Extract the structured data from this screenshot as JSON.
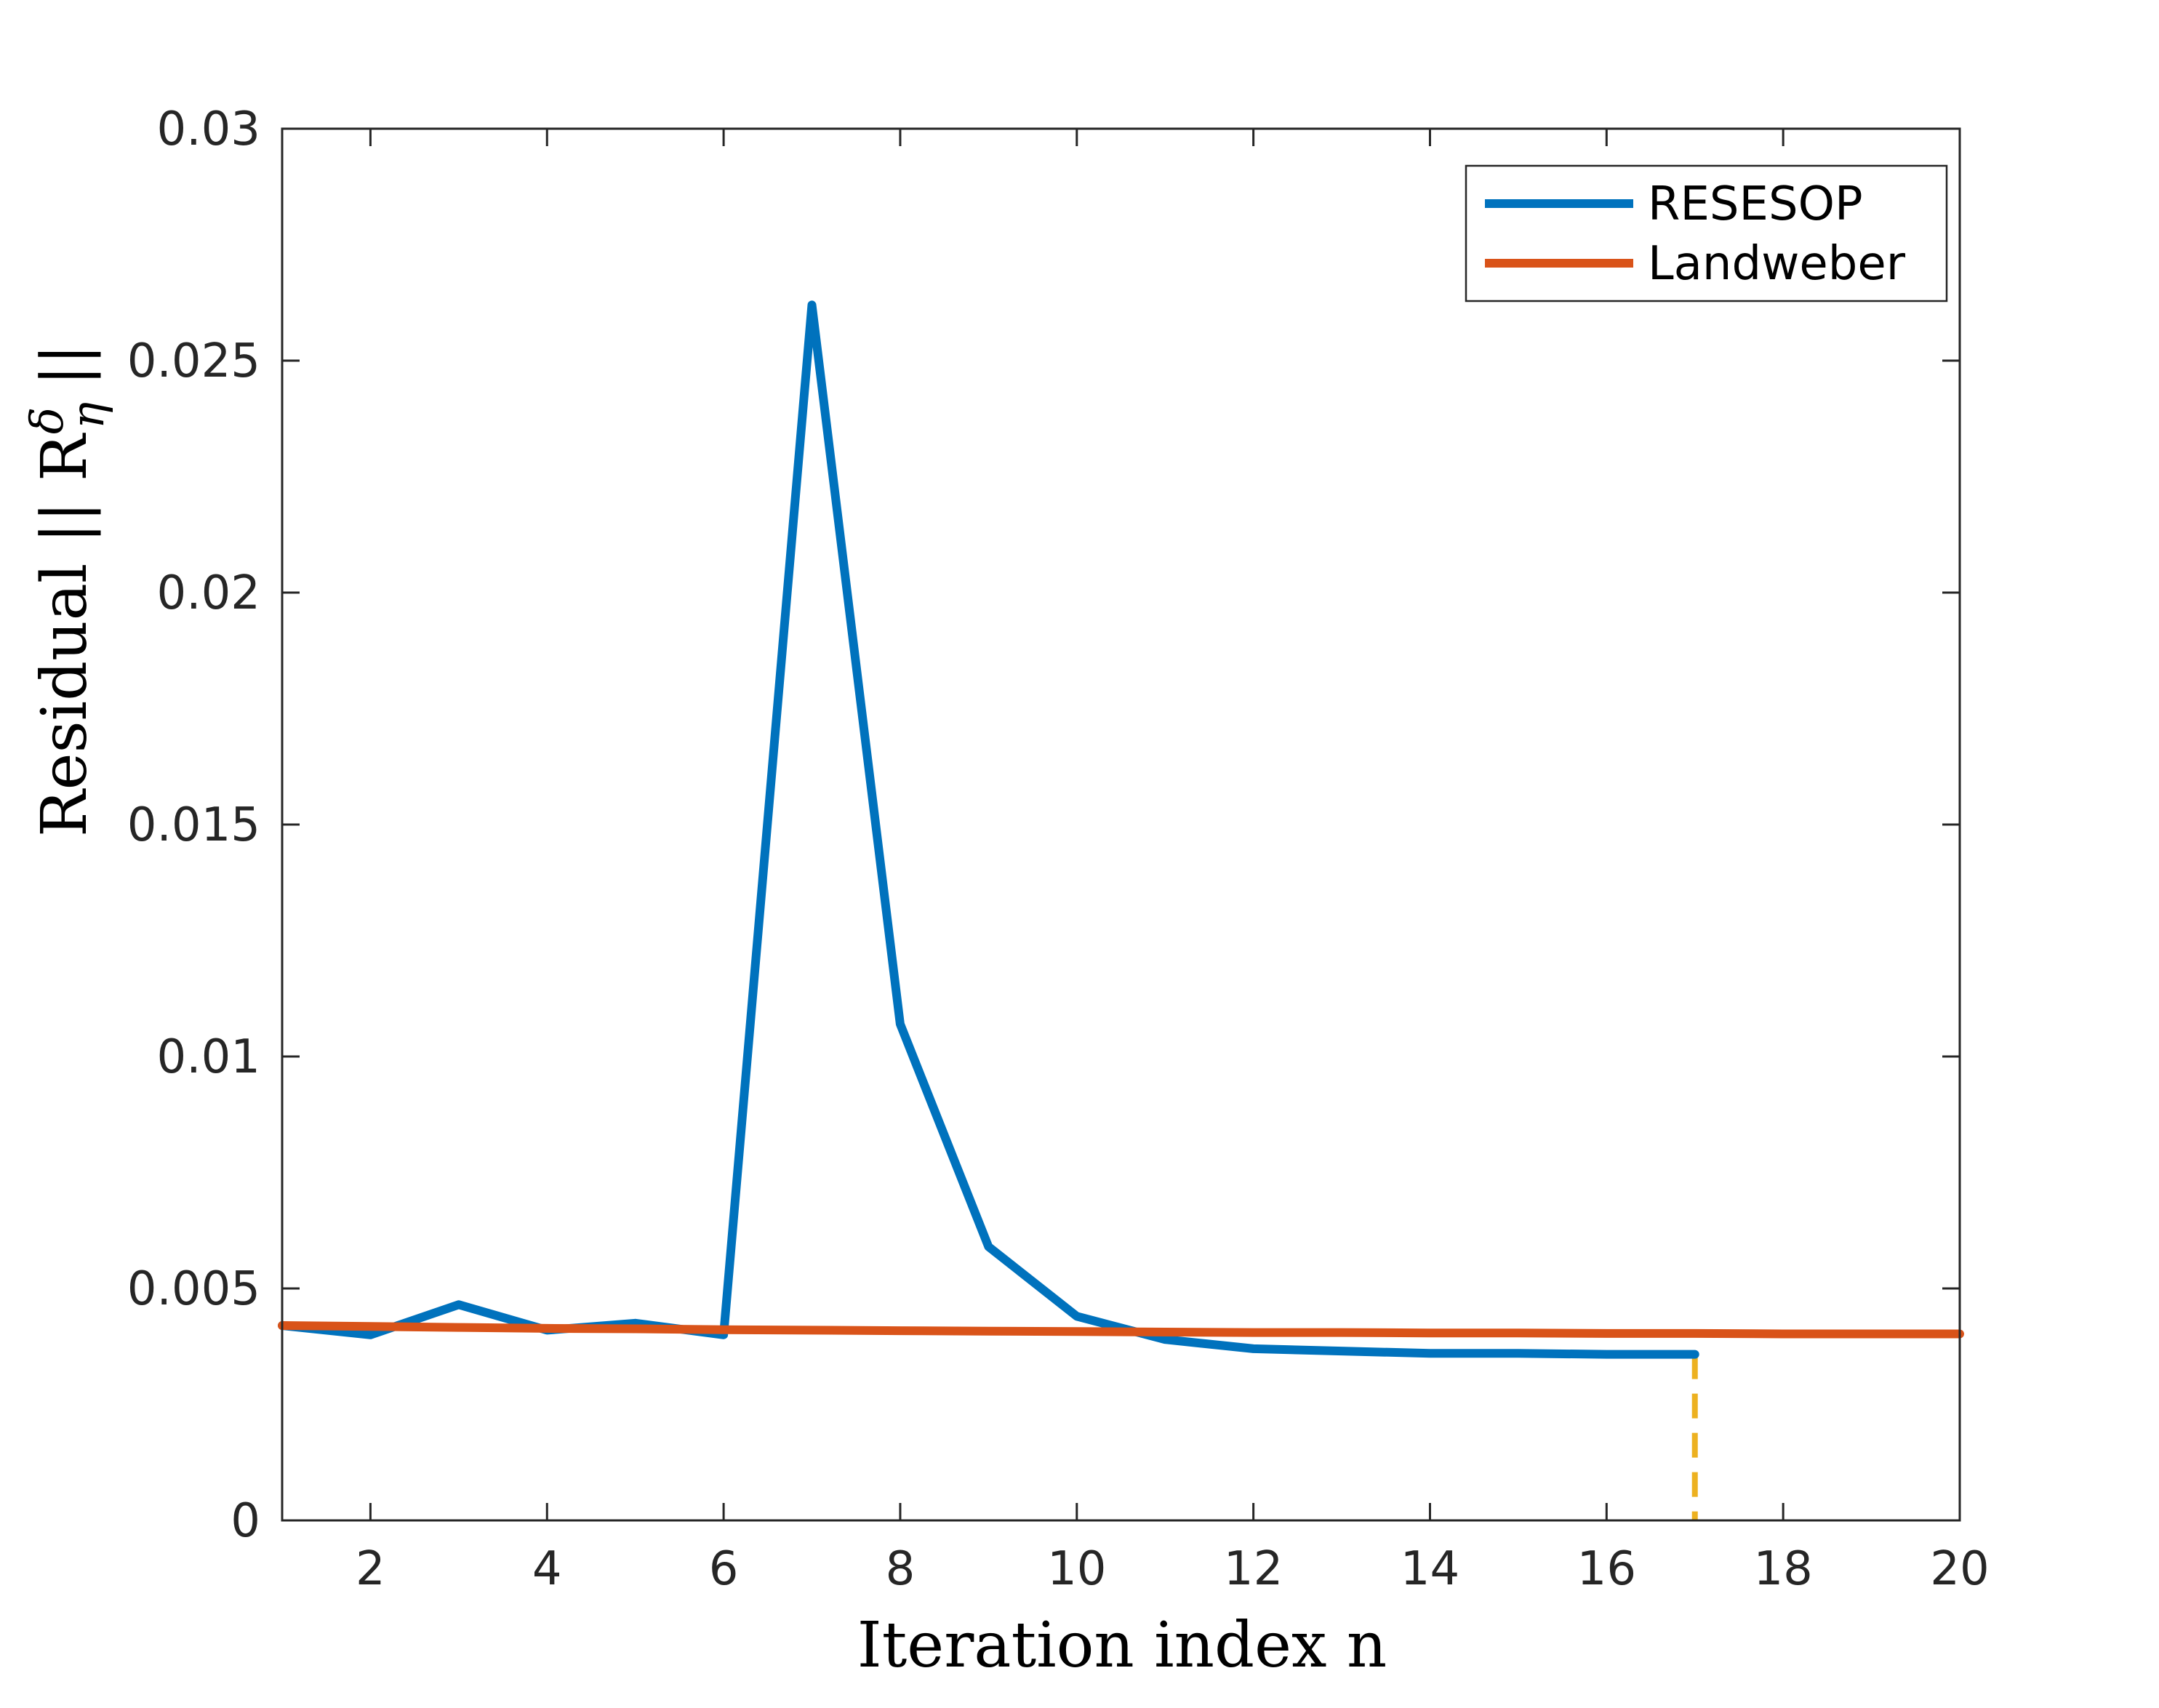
{
  "chart_data": {
    "type": "line",
    "xlabel": "Iteration index n",
    "ylabel": "Residual || R",
    "ylabel_sub": "η",
    "ylabel_sup": "δ",
    "ylabel_end": "||",
    "xlim": [
      1,
      20
    ],
    "ylim": [
      0,
      0.03
    ],
    "xticks": [
      2,
      4,
      6,
      8,
      10,
      12,
      14,
      16,
      18,
      20
    ],
    "xtick_labels": [
      "2",
      "4",
      "6",
      "8",
      "10",
      "12",
      "14",
      "16",
      "18",
      "20"
    ],
    "yticks": [
      0,
      0.005,
      0.01,
      0.015,
      0.02,
      0.025,
      0.03
    ],
    "ytick_labels": [
      "0",
      "0.005",
      "0.01",
      "0.015",
      "0.02",
      "0.025",
      "0.03"
    ],
    "grid": false,
    "legend_position": "top-right",
    "series": [
      {
        "name": "RESESOP",
        "color": "#0072BD",
        "x": [
          1,
          2,
          3,
          4,
          5,
          6,
          7,
          8,
          9,
          10,
          11,
          12,
          13,
          14,
          15,
          16,
          17
        ],
        "y": [
          0.0042,
          0.004,
          0.00465,
          0.0041,
          0.00425,
          0.004,
          0.0262,
          0.0107,
          0.0059,
          0.0044,
          0.0039,
          0.0037,
          0.00365,
          0.0036,
          0.0036,
          0.00358,
          0.00358
        ]
      },
      {
        "name": "Landweber",
        "color": "#D95319",
        "x": [
          1,
          2,
          3,
          4,
          5,
          6,
          7,
          8,
          9,
          10,
          11,
          12,
          13,
          14,
          15,
          16,
          17,
          18,
          19,
          20
        ],
        "y": [
          0.0042,
          0.00418,
          0.00416,
          0.00414,
          0.00413,
          0.00411,
          0.0041,
          0.00409,
          0.00408,
          0.00407,
          0.00406,
          0.00405,
          0.00405,
          0.00404,
          0.00404,
          0.00403,
          0.00403,
          0.00402,
          0.00402,
          0.00402
        ]
      }
    ],
    "stopping_marker": {
      "x": 17,
      "y": 0.00358,
      "color": "#EDB120",
      "style": "dashed"
    }
  }
}
